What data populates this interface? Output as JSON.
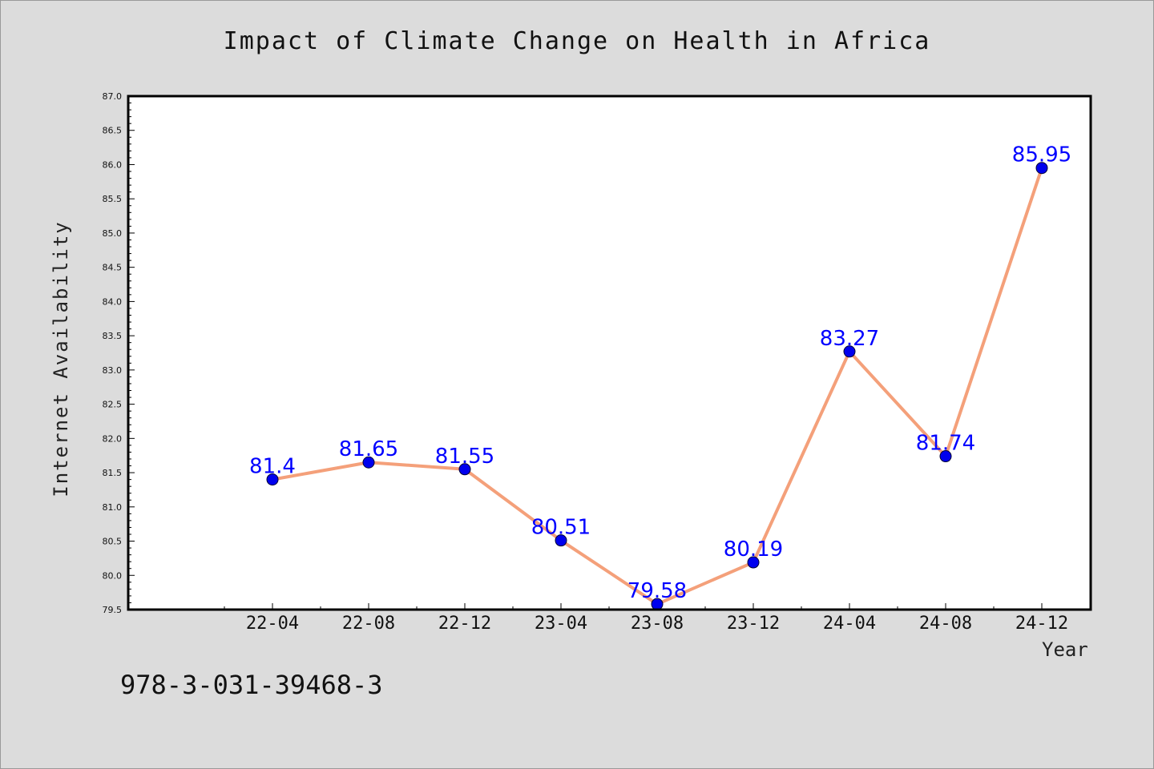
{
  "chart_data": {
    "type": "line",
    "title": "Impact of Climate Change on Health in Africa",
    "xlabel": "Year",
    "ylabel": "Internet Availability",
    "categories": [
      "22-04",
      "22-08",
      "22-12",
      "23-04",
      "23-08",
      "23-12",
      "24-04",
      "24-08",
      "24-12"
    ],
    "values": [
      81.4,
      81.65,
      81.55,
      80.51,
      79.58,
      80.19,
      83.27,
      81.74,
      85.95
    ],
    "data_labels": [
      "81.4",
      "81.65",
      "81.55",
      "80.51",
      "79.58",
      "80.19",
      "83.27",
      "81.74",
      "85.95"
    ],
    "ylim": [
      79.5,
      87.0
    ],
    "yticks": [
      "79.5",
      "80.0",
      "80.5",
      "81.0",
      "81.5",
      "82.0",
      "82.5",
      "83.0",
      "83.5",
      "84.0",
      "84.5",
      "85.0",
      "85.5",
      "86.0",
      "86.5",
      "87.0"
    ],
    "grid": false,
    "line_color": "#f4a07a",
    "marker_color": "#0000ee",
    "label_color": "#0000ff"
  },
  "annotation": "978-3-031-39468-3"
}
